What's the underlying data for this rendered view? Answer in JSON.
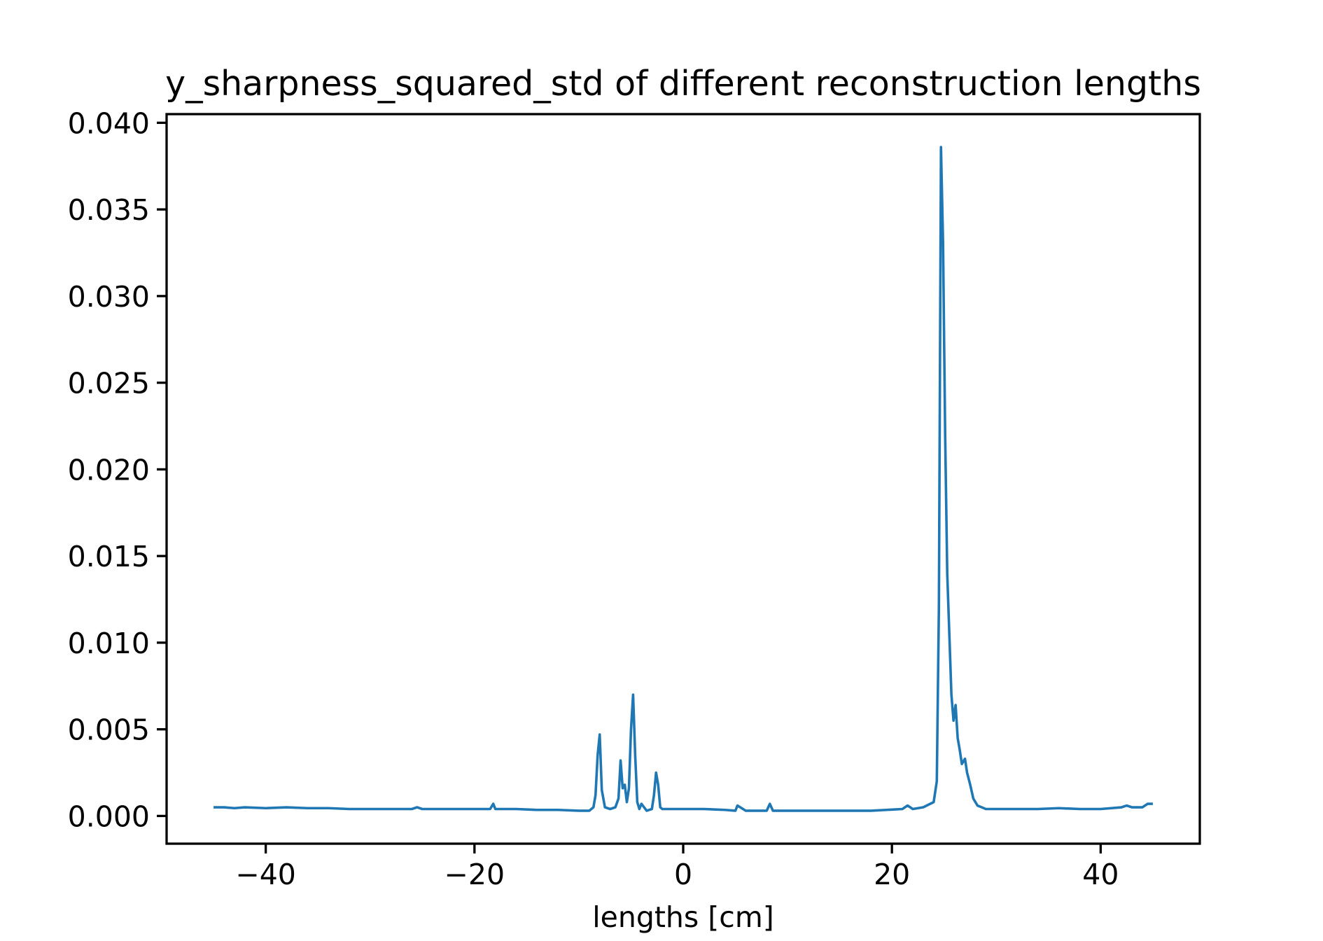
{
  "chart_data": {
    "type": "line",
    "title": "y_sharpness_squared_std of different reconstruction lengths",
    "x_label": "lengths [cm]",
    "xlim": [
      -49.5,
      49.5
    ],
    "ylim": [
      -0.0016,
      0.0405
    ],
    "xticks": [
      {
        "value": -40,
        "label": "−40"
      },
      {
        "value": -20,
        "label": "−20"
      },
      {
        "value": 0,
        "label": "0"
      },
      {
        "value": 20,
        "label": "20"
      },
      {
        "value": 40,
        "label": "40"
      }
    ],
    "yticks": [
      {
        "value": 0,
        "label": "0.000"
      },
      {
        "value": 0.005,
        "label": "0.005"
      },
      {
        "value": 0.01,
        "label": "0.010"
      },
      {
        "value": 0.015,
        "label": "0.015"
      },
      {
        "value": 0.02,
        "label": "0.020"
      },
      {
        "value": 0.025,
        "label": "0.025"
      },
      {
        "value": 0.03,
        "label": "0.030"
      },
      {
        "value": 0.035,
        "label": "0.035"
      },
      {
        "value": 0.04,
        "label": "0.040"
      }
    ],
    "x": [
      -45,
      -44,
      -43,
      -42,
      -40,
      -38,
      -36,
      -34,
      -32,
      -30,
      -28,
      -26,
      -25.5,
      -25,
      -22,
      -20,
      -18.5,
      -18.2,
      -18,
      -16,
      -14,
      -12,
      -10,
      -9,
      -8.6,
      -8.4,
      -8.2,
      -8.0,
      -7.8,
      -7.5,
      -7,
      -6.5,
      -6.2,
      -6.0,
      -5.8,
      -5.6,
      -5.4,
      -5.2,
      -5.0,
      -4.8,
      -4.6,
      -4.4,
      -4.2,
      -4.0,
      -3.5,
      -3.0,
      -2.8,
      -2.6,
      -2.4,
      -2.2,
      -2.0,
      -1.5,
      0,
      2,
      4,
      5,
      5.2,
      6,
      8,
      8.3,
      8.6,
      10,
      14,
      18,
      21,
      21.5,
      22,
      23,
      24,
      24.3,
      24.5,
      24.7,
      24.9,
      25.1,
      25.3,
      25.5,
      25.7,
      25.9,
      26.1,
      26.3,
      26.5,
      26.7,
      27.0,
      27.2,
      27.5,
      27.8,
      28.2,
      28.6,
      29,
      30,
      32,
      34,
      36,
      38,
      40,
      42,
      42.5,
      43,
      44,
      44.5,
      45
    ],
    "series": [
      {
        "color": "#1f77b4",
        "values": [
          0.0005,
          0.0005,
          0.00045,
          0.0005,
          0.00045,
          0.0005,
          0.00045,
          0.00045,
          0.0004,
          0.0004,
          0.0004,
          0.0004,
          0.0005,
          0.0004,
          0.0004,
          0.0004,
          0.0004,
          0.0007,
          0.0004,
          0.0004,
          0.00035,
          0.00035,
          0.0003,
          0.0003,
          0.0005,
          0.0012,
          0.0035,
          0.0047,
          0.0015,
          0.0005,
          0.0004,
          0.0005,
          0.001,
          0.0032,
          0.0016,
          0.0018,
          0.0008,
          0.0016,
          0.005,
          0.007,
          0.0035,
          0.0008,
          0.0004,
          0.0007,
          0.0003,
          0.0004,
          0.0012,
          0.0025,
          0.0018,
          0.0005,
          0.0004,
          0.0004,
          0.0004,
          0.0004,
          0.00035,
          0.0003,
          0.0006,
          0.0003,
          0.0003,
          0.0007,
          0.0003,
          0.0003,
          0.0003,
          0.0003,
          0.0004,
          0.0006,
          0.0004,
          0.0005,
          0.0008,
          0.002,
          0.012,
          0.0386,
          0.033,
          0.022,
          0.014,
          0.0105,
          0.007,
          0.0055,
          0.0064,
          0.0045,
          0.0038,
          0.003,
          0.0033,
          0.0025,
          0.0018,
          0.001,
          0.0006,
          0.0005,
          0.0004,
          0.0004,
          0.0004,
          0.0004,
          0.00045,
          0.0004,
          0.0004,
          0.0005,
          0.0006,
          0.0005,
          0.0005,
          0.0007,
          0.0007
        ]
      }
    ]
  }
}
